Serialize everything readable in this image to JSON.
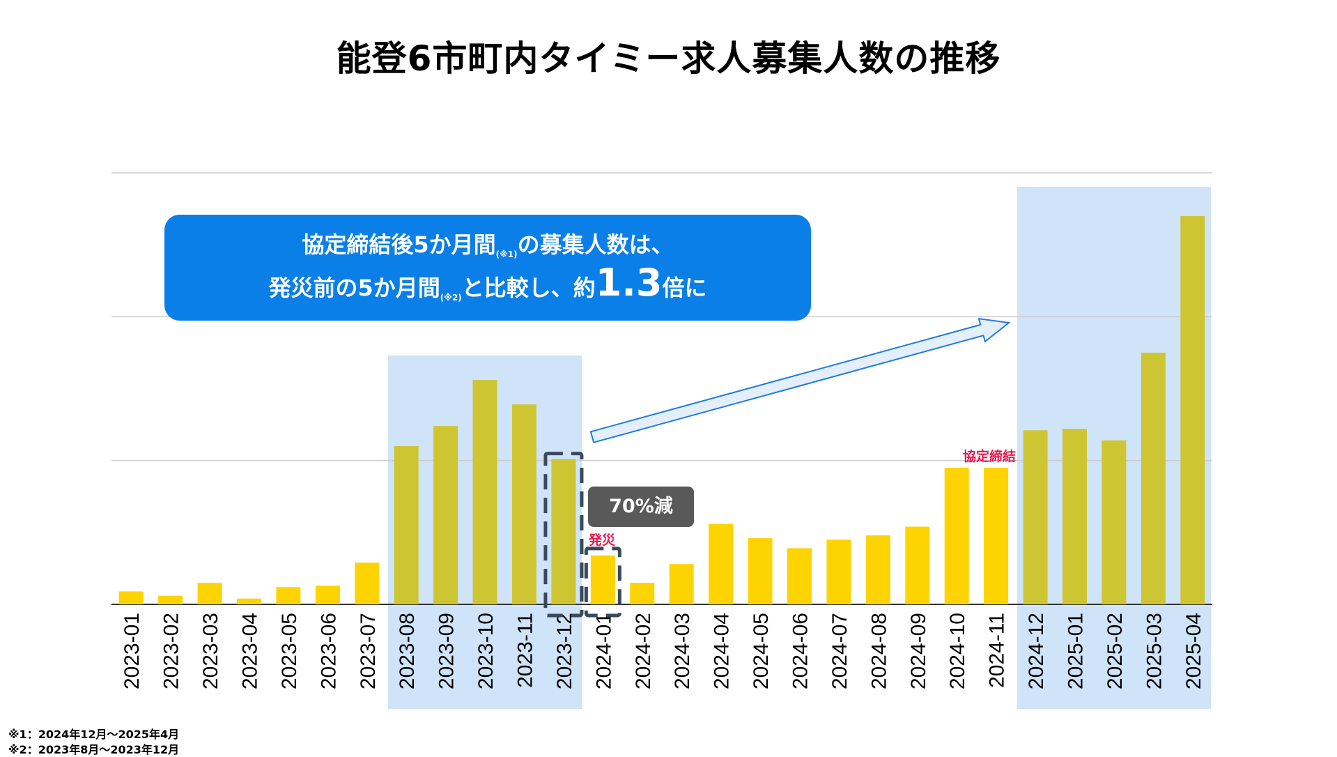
{
  "title": "能登6市町内タイミー求人募集人数の推移",
  "colors": {
    "bar": "#fdd402",
    "bar_highlight": "#cec533",
    "highlight_bg": "#cfe4f9",
    "callout_bg": "#0a7fe8",
    "event_label": "#e8174e",
    "badge_bg": "#595959"
  },
  "callout": {
    "line1_main": "協定締結後5か月間",
    "line1_note": "(※1)",
    "line1_tail": "の募集人数は、",
    "line2_main": "発災前の5か月間",
    "line2_note": "(※2)",
    "line2_mid": "と比較し、約",
    "line2_big": "1.3",
    "line2_tail": "倍に"
  },
  "badge": "70%減",
  "events": {
    "disaster": "発災",
    "agreement": "協定締結"
  },
  "footnotes": [
    "※1：2024年12月～2025年4月",
    "※2：2023年8月～2023年12月"
  ],
  "chart_data": {
    "type": "bar",
    "categories": [
      "2023-01",
      "2023-02",
      "2023-03",
      "2023-04",
      "2023-05",
      "2023-06",
      "2023-07",
      "2023-08",
      "2023-09",
      "2023-10",
      "2023-11",
      "2023-12",
      "2024-01",
      "2024-02",
      "2024-03",
      "2024-04",
      "2024-05",
      "2024-06",
      "2024-07",
      "2024-08",
      "2024-09",
      "2024-10",
      "2024-11",
      "2024-12",
      "2025-01",
      "2025-02",
      "2025-03",
      "2025-04"
    ],
    "values": [
      9,
      6,
      15,
      4,
      12,
      13,
      29,
      110,
      124,
      156,
      139,
      101,
      34,
      15,
      28,
      56,
      46,
      39,
      45,
      48,
      54,
      95,
      95,
      121,
      122,
      114,
      175,
      270
    ],
    "highlighted": [
      "2023-08",
      "2023-09",
      "2023-10",
      "2023-11",
      "2023-12",
      "2024-12",
      "2025-01",
      "2025-02",
      "2025-03",
      "2025-04"
    ],
    "ylim": [
      0,
      300
    ],
    "yticks": [
      0,
      100,
      200,
      300
    ],
    "grid": true,
    "ylabel": "",
    "xlabel": ""
  }
}
